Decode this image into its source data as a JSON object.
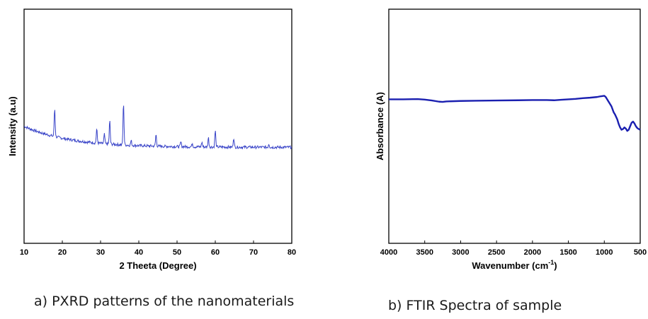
{
  "panels": {
    "a": {
      "caption": "a) PXRD patterns of the nanomaterials"
    },
    "b": {
      "caption": "b) FTIR Spectra of sample"
    }
  },
  "chart_data": [
    {
      "type": "line",
      "title": "",
      "xlabel": "2 Theeta (Degree)",
      "ylabel": "Intensity (a.u)",
      "xlim": [
        10,
        80
      ],
      "ylim": [
        0,
        1
      ],
      "x_ticks": [
        10,
        20,
        30,
        40,
        50,
        60,
        70,
        80
      ],
      "y_ticks_shown": false,
      "grid": false,
      "series": [
        {
          "color": "#3a45c8",
          "baseline": {
            "start": 0.5,
            "end": 0.41,
            "decay": 0.06
          },
          "peaks": [
            {
              "x": 18.0,
              "h": 0.12
            },
            {
              "x": 29.0,
              "h": 0.06
            },
            {
              "x": 31.0,
              "h": 0.04
            },
            {
              "x": 32.4,
              "h": 0.1
            },
            {
              "x": 36.0,
              "h": 0.18
            },
            {
              "x": 38.0,
              "h": 0.02
            },
            {
              "x": 44.5,
              "h": 0.05
            },
            {
              "x": 51.0,
              "h": 0.02
            },
            {
              "x": 54.0,
              "h": 0.015
            },
            {
              "x": 56.5,
              "h": 0.02
            },
            {
              "x": 58.2,
              "h": 0.04
            },
            {
              "x": 60.0,
              "h": 0.07
            },
            {
              "x": 64.8,
              "h": 0.04
            },
            {
              "x": 74.0,
              "h": 0.015
            }
          ]
        }
      ]
    },
    {
      "type": "line",
      "title": "",
      "xlabel": "Wavenumber (cm",
      "xlabel_sup": "-1",
      "xlabel_tail": ")",
      "ylabel": "Absorbance (A)",
      "xlim": [
        4000,
        500
      ],
      "ylim": [
        0,
        1
      ],
      "x_ticks": [
        4000,
        3500,
        3000,
        2500,
        2000,
        1500,
        1000,
        500
      ],
      "y_ticks_shown": false,
      "grid": false,
      "series": [
        {
          "color": "#1a1fb0",
          "x": [
            4000,
            3800,
            3600,
            3500,
            3400,
            3300,
            3250,
            3200,
            3000,
            2800,
            2500,
            2200,
            2000,
            1800,
            1700,
            1600,
            1500,
            1400,
            1300,
            1200,
            1100,
            1050,
            1000,
            980,
            950,
            900,
            870,
            850,
            820,
            800,
            780,
            760,
            740,
            720,
            700,
            680,
            660,
            640,
            620,
            600,
            580,
            560,
            540,
            520,
            500
          ],
          "y": [
            0.615,
            0.615,
            0.616,
            0.614,
            0.61,
            0.605,
            0.604,
            0.606,
            0.608,
            0.609,
            0.61,
            0.611,
            0.612,
            0.612,
            0.611,
            0.613,
            0.615,
            0.617,
            0.62,
            0.622,
            0.625,
            0.628,
            0.63,
            0.625,
            0.61,
            0.585,
            0.56,
            0.55,
            0.53,
            0.51,
            0.495,
            0.485,
            0.488,
            0.495,
            0.49,
            0.48,
            0.485,
            0.5,
            0.515,
            0.52,
            0.512,
            0.5,
            0.492,
            0.488,
            0.485
          ]
        }
      ]
    }
  ]
}
